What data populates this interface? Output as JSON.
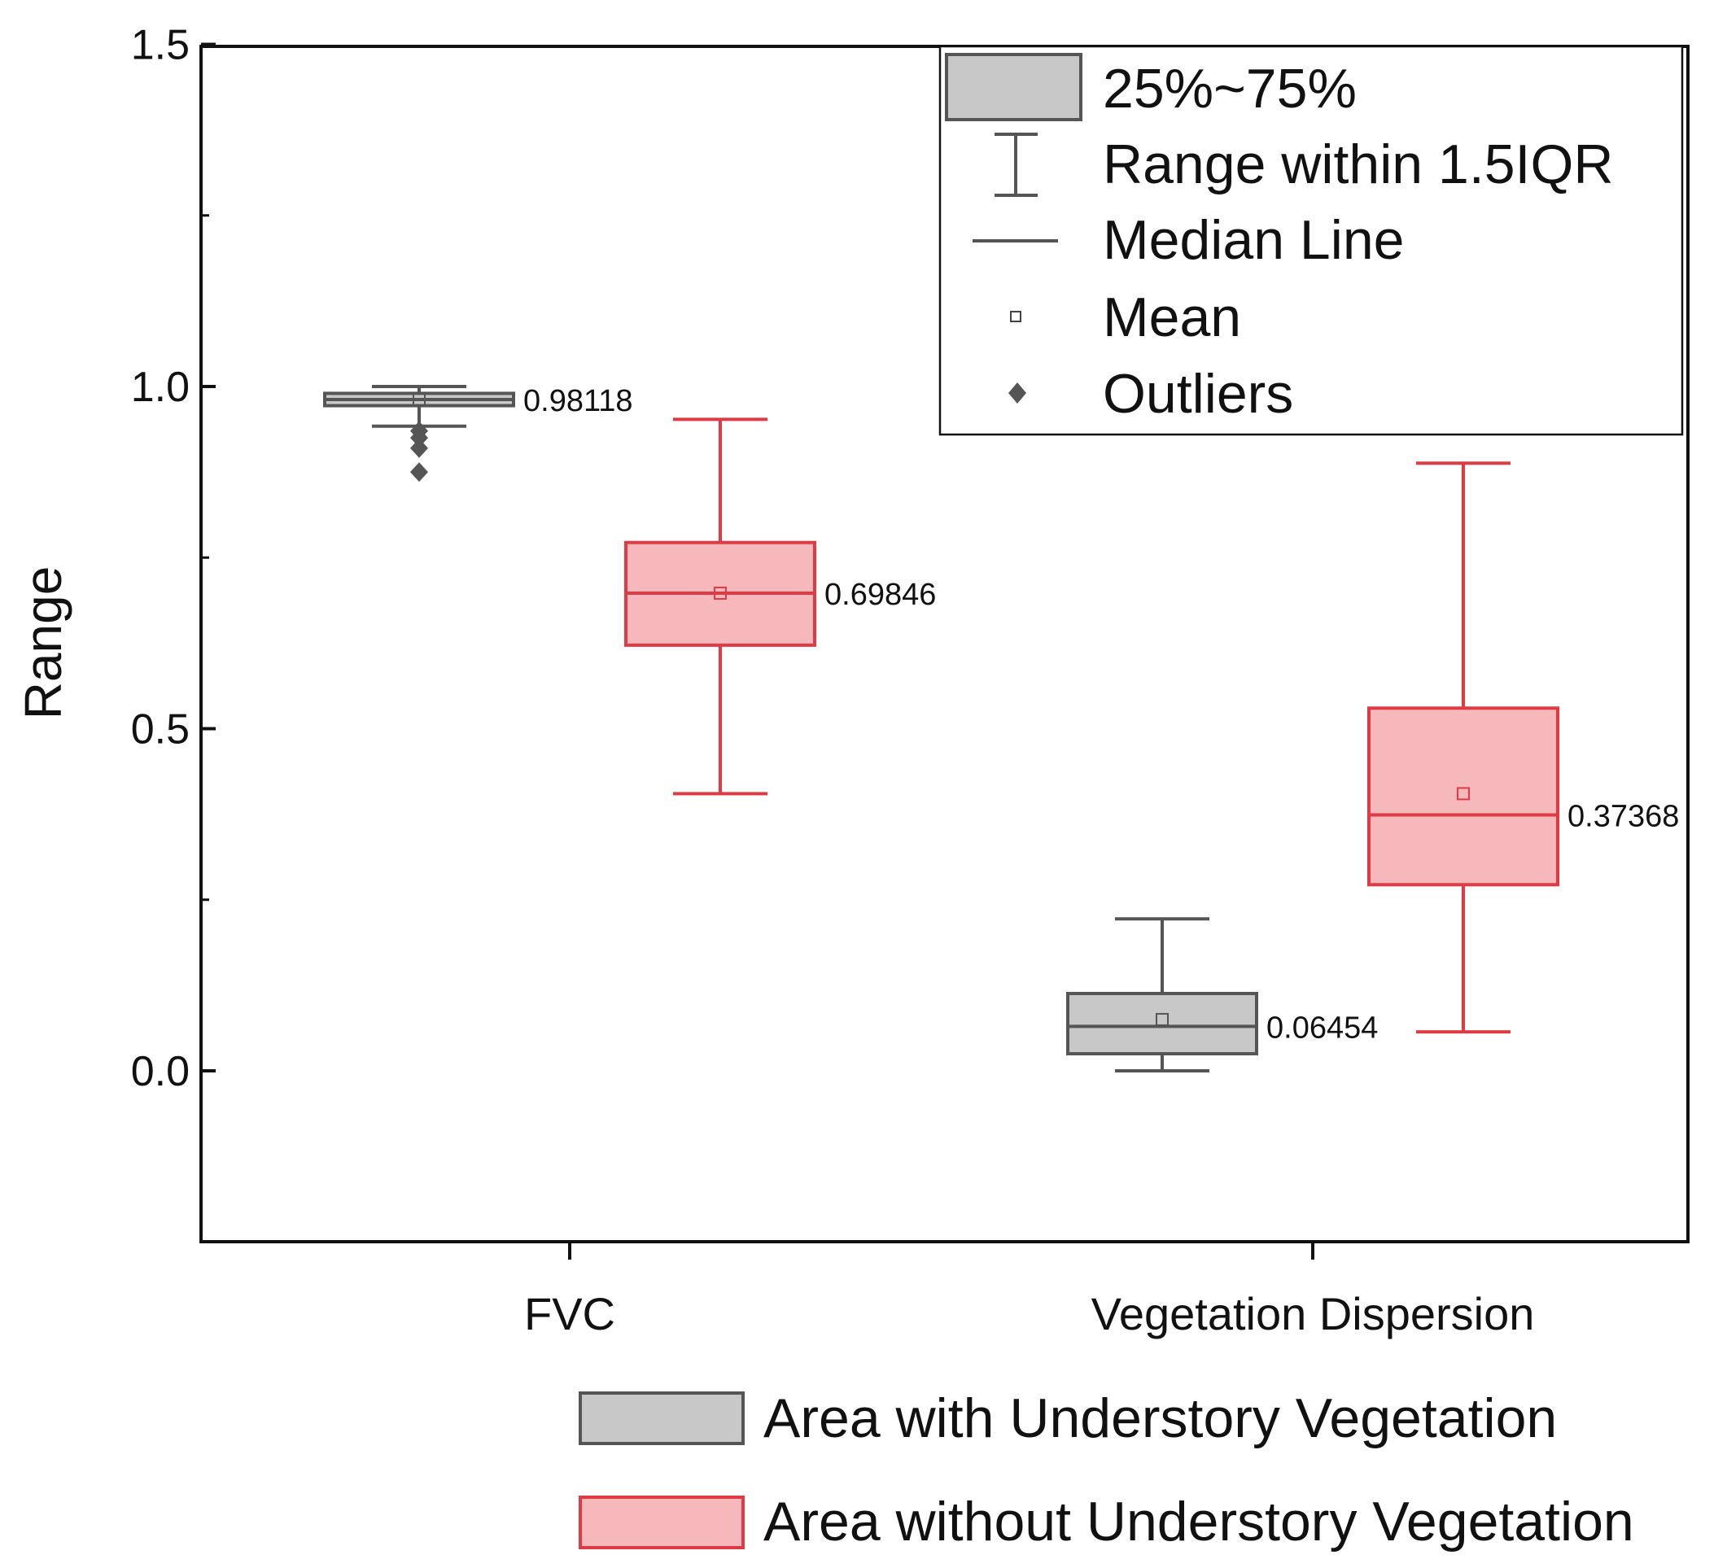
{
  "chart_data": {
    "type": "box",
    "ylabel": "Range",
    "ylim": [
      -0.25,
      1.5
    ],
    "yticks": [
      "0.0",
      "0.5",
      "1.0",
      "1.5"
    ],
    "categories": [
      "FVC",
      "Vegetation Dispersion"
    ],
    "series": [
      {
        "name": "Area with Understory Vegetation",
        "fill": "#c8c8c8",
        "stroke": "#555555",
        "boxes": [
          {
            "category": "FVC",
            "q1": 0.972,
            "q3": 0.99,
            "median": 0.981,
            "mean": 0.981,
            "whisker_low": 0.942,
            "whisker_high": 1.0,
            "label": "0.98118",
            "outliers": [
              0.935,
              0.925,
              0.91,
              0.875
            ]
          },
          {
            "category": "Vegetation Dispersion",
            "q1": 0.025,
            "q3": 0.113,
            "median": 0.065,
            "mean": 0.075,
            "whisker_low": 0.0,
            "whisker_high": 0.222,
            "label": "0.06454",
            "outliers": []
          }
        ]
      },
      {
        "name": "Area without Understory Vegetation",
        "fill": "#f7b8bc",
        "stroke": "#e03a44",
        "boxes": [
          {
            "category": "FVC",
            "q1": 0.622,
            "q3": 0.772,
            "median": 0.698,
            "mean": 0.698,
            "whisker_low": 0.405,
            "whisker_high": 0.952,
            "label": "0.69846",
            "outliers": []
          },
          {
            "category": "Vegetation Dispersion",
            "q1": 0.272,
            "q3": 0.53,
            "median": 0.374,
            "mean": 0.405,
            "whisker_low": 0.057,
            "whisker_high": 0.888,
            "label": "0.37368",
            "outliers": []
          }
        ]
      }
    ],
    "legend_inner": [
      {
        "symbol": "box",
        "label": "25%~75%"
      },
      {
        "symbol": "whisker",
        "label": "Range within 1.5IQR"
      },
      {
        "symbol": "line",
        "label": "Median Line"
      },
      {
        "symbol": "square",
        "label": "Mean"
      },
      {
        "symbol": "diamond",
        "label": "Outliers"
      }
    ],
    "legend_bottom": [
      "Area with Understory Vegetation",
      "Area without Understory Vegetation"
    ]
  }
}
